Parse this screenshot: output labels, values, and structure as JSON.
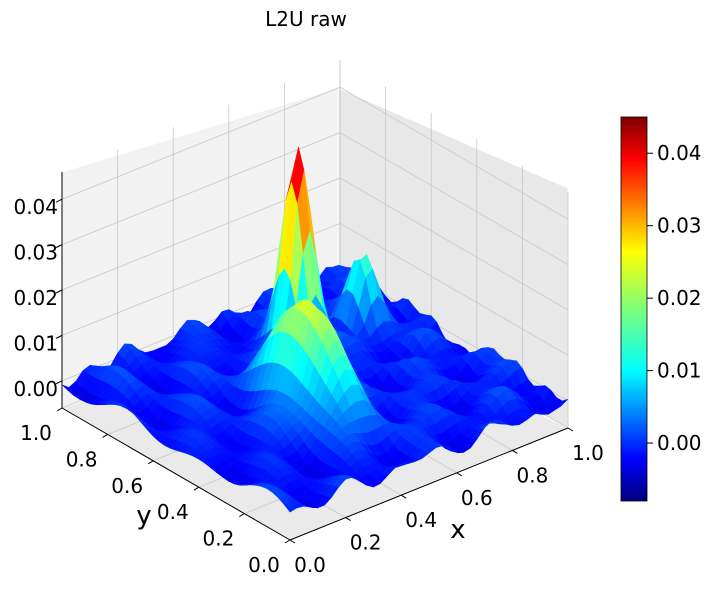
{
  "chart_data": {
    "type": "surface3d",
    "title": "L2U raw",
    "xlabel": "x",
    "ylabel": "y",
    "zlabel": "",
    "xlim": [
      0.0,
      1.0
    ],
    "ylim": [
      0.0,
      1.0
    ],
    "zlim": [
      -0.006,
      0.046
    ],
    "x_ticks": [
      "0.0",
      "0.2",
      "0.4",
      "0.6",
      "0.8",
      "1.0"
    ],
    "y_ticks": [
      "0.0",
      "0.2",
      "0.4",
      "0.6",
      "0.8",
      "1.0"
    ],
    "z_ticks": [
      "0.00",
      "0.01",
      "0.02",
      "0.03",
      "0.04"
    ],
    "colormap": "jet",
    "colorbar": {
      "min": -0.008,
      "max": 0.045,
      "ticks": [
        "0.00",
        "0.01",
        "0.02",
        "0.03",
        "0.04"
      ]
    },
    "features": [
      {
        "kind": "peak",
        "x": 0.62,
        "y": 0.72,
        "height": 0.045
      },
      {
        "kind": "ridge",
        "x": 0.42,
        "y": 0.42,
        "height": 0.024
      },
      {
        "kind": "peak",
        "x": 0.84,
        "y": 0.7,
        "height": 0.014
      },
      {
        "kind": "noise_floor",
        "height": 0.0
      }
    ],
    "grid": true
  }
}
